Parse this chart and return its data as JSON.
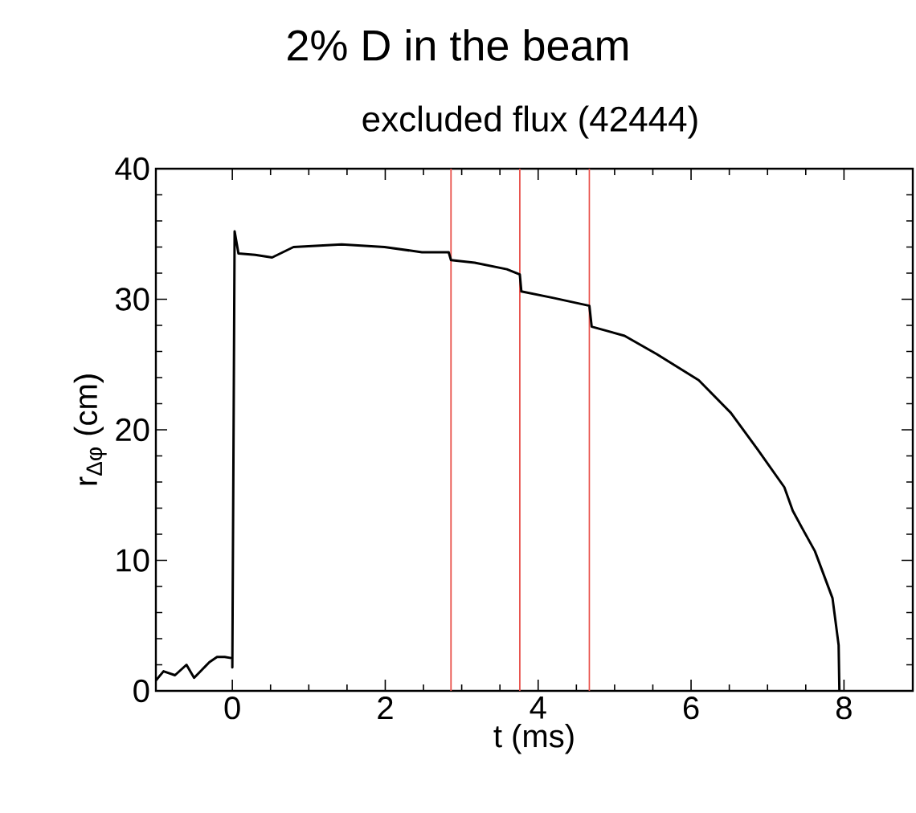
{
  "chart_data": {
    "type": "line",
    "title": "2% D in the beam",
    "subtitle": "excluded flux (42444)",
    "xlabel": "t (ms)",
    "ylabel": "r$_{Δφ}$ (cm)",
    "xlim": [
      -1,
      8.9
    ],
    "ylim": [
      0,
      40
    ],
    "xticks": [
      0,
      2,
      4,
      6,
      8
    ],
    "yticks": [
      0,
      10,
      20,
      30,
      40
    ],
    "grid": false,
    "marker": "none",
    "line_style": "solid",
    "series": [
      {
        "color": "#000000",
        "x": [
          -1,
          -0.9,
          -0.75,
          -0.6,
          -0.5,
          -0.4,
          -0.3,
          -0.2,
          -0.1,
          0,
          0,
          0.03,
          0.08,
          0.3,
          0.52,
          0.8,
          1.43,
          1.99,
          2.48,
          2.83,
          2.86,
          3.17,
          3.59,
          3.76,
          3.78,
          4.2,
          4.67,
          4.7,
          5.13,
          5.55,
          6.1,
          6.52,
          6.87,
          7.22,
          7.33,
          7.45,
          7.62,
          7.85,
          7.93,
          7.94
        ],
        "values": [
          0.8,
          1.5,
          1.2,
          2.0,
          1.0,
          1.6,
          2.2,
          2.6,
          2.6,
          2.5,
          1.8,
          35.2,
          33.5,
          33.4,
          33.2,
          34.0,
          34.2,
          34.0,
          33.6,
          33.6,
          33.0,
          32.8,
          32.3,
          31.9,
          30.6,
          30.1,
          29.5,
          27.9,
          27.2,
          25.8,
          23.8,
          21.3,
          18.5,
          15.6,
          13.8,
          12.5,
          10.7,
          7.1,
          3.5,
          0
        ]
      }
    ],
    "ref_lines": [
      {
        "axis": "x",
        "value": 2.86,
        "color": "#e8504a"
      },
      {
        "axis": "x",
        "value": 3.76,
        "color": "#e8504a"
      },
      {
        "axis": "x",
        "value": 4.67,
        "color": "#e8504a"
      }
    ]
  }
}
